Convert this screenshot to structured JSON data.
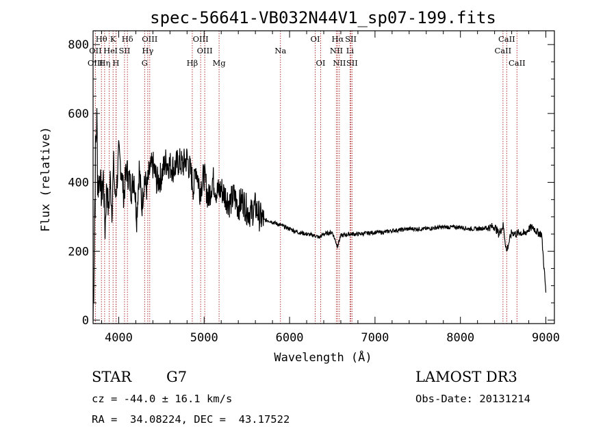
{
  "chart_data": {
    "type": "line",
    "title": "spec-56641-VB032N44V1_sp07-199.fits",
    "xlabel": "Wavelength (Å)",
    "ylabel": "Flux (relative)",
    "xlim": [
      3700,
      9100
    ],
    "ylim": [
      -10,
      840
    ],
    "xticks": [
      4000,
      5000,
      6000,
      7000,
      8000,
      9000
    ],
    "yticks": [
      0,
      200,
      400,
      600,
      800
    ],
    "grid": false,
    "series": [
      {
        "name": "spectrum",
        "x": [
          3700,
          3720,
          3740,
          3760,
          3780,
          3800,
          3820,
          3840,
          3860,
          3880,
          3900,
          3920,
          3940,
          3960,
          3980,
          4000,
          4030,
          4060,
          4090,
          4120,
          4150,
          4180,
          4210,
          4240,
          4270,
          4300,
          4330,
          4360,
          4400,
          4450,
          4500,
          4550,
          4600,
          4650,
          4700,
          4750,
          4800,
          4850,
          4880,
          4900,
          4950,
          5000,
          5050,
          5100,
          5150,
          5200,
          5250,
          5300,
          5350,
          5400,
          5450,
          5500,
          5550,
          5600,
          5650,
          5700,
          5750,
          5800,
          5850,
          5900,
          6000,
          6100,
          6200,
          6300,
          6350,
          6400,
          6500,
          6560,
          6600,
          6700,
          6800,
          6900,
          7000,
          7100,
          7200,
          7300,
          7400,
          7500,
          7600,
          7700,
          7800,
          7900,
          8000,
          8100,
          8200,
          8300,
          8400,
          8450,
          8500,
          8540,
          8600,
          8650,
          8700,
          8750,
          8800,
          8850,
          8900,
          8950,
          9000
        ],
        "values": [
          5,
          350,
          590,
          380,
          430,
          350,
          420,
          260,
          400,
          310,
          410,
          320,
          450,
          350,
          400,
          480,
          440,
          360,
          440,
          410,
          380,
          420,
          300,
          440,
          330,
          410,
          380,
          430,
          450,
          400,
          420,
          460,
          450,
          440,
          460,
          450,
          470,
          420,
          380,
          450,
          380,
          420,
          350,
          410,
          370,
          380,
          360,
          340,
          360,
          330,
          350,
          320,
          310,
          330,
          300,
          290,
          290,
          285,
          280,
          275,
          265,
          255,
          250,
          245,
          240,
          250,
          255,
          215,
          245,
          250,
          250,
          252,
          255,
          255,
          260,
          262,
          265,
          265,
          265,
          268,
          270,
          270,
          270,
          265,
          265,
          268,
          272,
          250,
          275,
          200,
          255,
          250,
          255,
          250,
          265,
          270,
          255,
          250,
          80
        ]
      }
    ],
    "lines_row1": [
      {
        "label": "Hθ",
        "x": 3798
      },
      {
        "label": "K",
        "x": 3934
      },
      {
        "label": "Hδ",
        "x": 4102
      },
      {
        "label": "OIII",
        "x": 4363
      },
      {
        "label": "OIII",
        "x": 4959
      },
      {
        "label": "OI",
        "x": 6300
      },
      {
        "label": "Hα",
        "x": 6563
      },
      {
        "label": "SII",
        "x": 6717
      },
      {
        "label": "CaII",
        "x": 8542
      }
    ],
    "lines_row2": [
      {
        "label": "OII",
        "x": 3727
      },
      {
        "label": "He",
        "x": 3889
      },
      {
        "label": "I",
        "x": 3970
      },
      {
        "label": "SII",
        "x": 4068
      },
      {
        "label": "Hγ",
        "x": 4340
      },
      {
        "label": "OIII",
        "x": 5007
      },
      {
        "label": "Na",
        "x": 5893
      },
      {
        "label": "NII",
        "x": 6548
      },
      {
        "label": "Li",
        "x": 6708
      },
      {
        "label": "CaII",
        "x": 8498
      }
    ],
    "lines_row3": [
      {
        "label": "OIII",
        "x": 3727
      },
      {
        "label": "Hη",
        "x": 3835
      },
      {
        "label": "H",
        "x": 3968
      },
      {
        "label": "G",
        "x": 4304
      },
      {
        "label": "Hβ",
        "x": 4861
      },
      {
        "label": "Mg",
        "x": 5175
      },
      {
        "label": "OI",
        "x": 6364
      },
      {
        "label": "NII",
        "x": 6583
      },
      {
        "label": "SII",
        "x": 6731
      },
      {
        "label": "CaII",
        "x": 8662
      }
    ]
  },
  "info": {
    "object_class": "STAR",
    "subclass": "G7",
    "survey": "LAMOST DR3",
    "redshift": "cz = -44.0 ± 16.1 km/s",
    "obs_date": "Obs-Date: 20131214",
    "coords": "RA =  34.08224, DEC =  43.17522"
  }
}
